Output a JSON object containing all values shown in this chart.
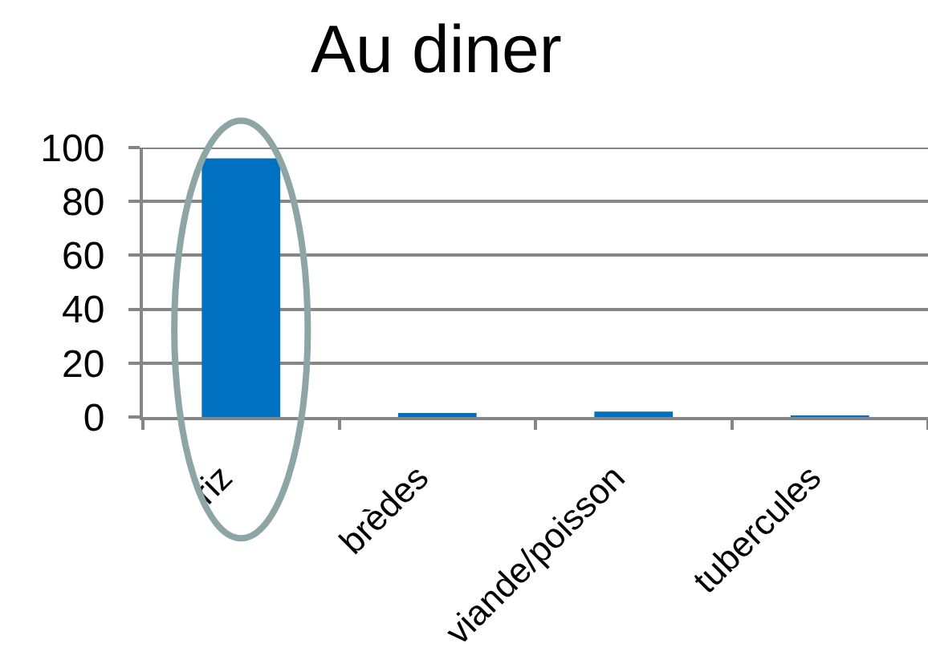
{
  "chart_data": {
    "type": "bar",
    "title": "Au diner",
    "categories": [
      "riz",
      "brèdes",
      "viande/poisson",
      "tubercules"
    ],
    "values": [
      96,
      1.5,
      2,
      0.5
    ],
    "color": "#0070c0",
    "ylim": [
      0,
      100
    ],
    "yticks": [
      0,
      20,
      40,
      60,
      80,
      100
    ],
    "grid": "y"
  }
}
